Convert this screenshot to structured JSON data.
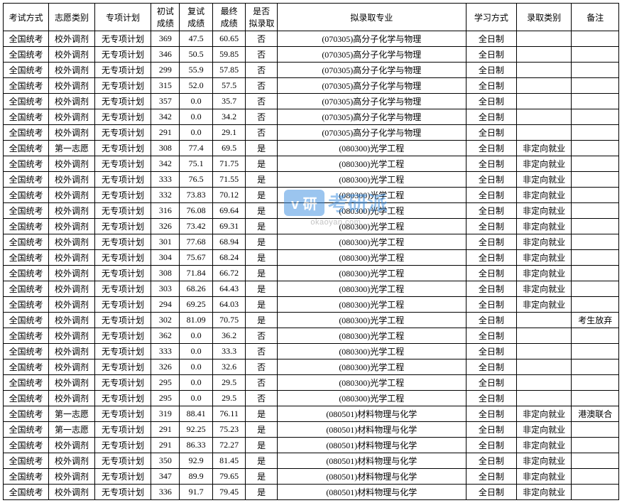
{
  "watermark": {
    "logo": "v 研",
    "text": "考研派",
    "sub": "okaoyan.com"
  },
  "table": {
    "columns": [
      "考试方式",
      "志愿类别",
      "专项计划",
      "初试\n成绩",
      "复试\n成绩",
      "最终\n成绩",
      "是否\n拟录取",
      "拟录取专业",
      "学习方式",
      "录取类别",
      "备注"
    ],
    "rows": [
      [
        "全国统考",
        "校外调剂",
        "无专项计划",
        "369",
        "47.5",
        "60.65",
        "否",
        "(070305)高分子化学与物理",
        "全日制",
        "",
        ""
      ],
      [
        "全国统考",
        "校外调剂",
        "无专项计划",
        "346",
        "50.5",
        "59.85",
        "否",
        "(070305)高分子化学与物理",
        "全日制",
        "",
        ""
      ],
      [
        "全国统考",
        "校外调剂",
        "无专项计划",
        "299",
        "55.9",
        "57.85",
        "否",
        "(070305)高分子化学与物理",
        "全日制",
        "",
        ""
      ],
      [
        "全国统考",
        "校外调剂",
        "无专项计划",
        "315",
        "52.0",
        "57.5",
        "否",
        "(070305)高分子化学与物理",
        "全日制",
        "",
        ""
      ],
      [
        "全国统考",
        "校外调剂",
        "无专项计划",
        "357",
        "0.0",
        "35.7",
        "否",
        "(070305)高分子化学与物理",
        "全日制",
        "",
        ""
      ],
      [
        "全国统考",
        "校外调剂",
        "无专项计划",
        "342",
        "0.0",
        "34.2",
        "否",
        "(070305)高分子化学与物理",
        "全日制",
        "",
        ""
      ],
      [
        "全国统考",
        "校外调剂",
        "无专项计划",
        "291",
        "0.0",
        "29.1",
        "否",
        "(070305)高分子化学与物理",
        "全日制",
        "",
        ""
      ],
      [
        "全国统考",
        "第一志愿",
        "无专项计划",
        "308",
        "77.4",
        "69.5",
        "是",
        "(080300)光学工程",
        "全日制",
        "非定向就业",
        ""
      ],
      [
        "全国统考",
        "校外调剂",
        "无专项计划",
        "342",
        "75.1",
        "71.75",
        "是",
        "(080300)光学工程",
        "全日制",
        "非定向就业",
        ""
      ],
      [
        "全国统考",
        "校外调剂",
        "无专项计划",
        "333",
        "76.5",
        "71.55",
        "是",
        "(080300)光学工程",
        "全日制",
        "非定向就业",
        ""
      ],
      [
        "全国统考",
        "校外调剂",
        "无专项计划",
        "332",
        "73.83",
        "70.12",
        "是",
        "(080300)光学工程",
        "全日制",
        "非定向就业",
        ""
      ],
      [
        "全国统考",
        "校外调剂",
        "无专项计划",
        "316",
        "76.08",
        "69.64",
        "是",
        "(080300)光学工程",
        "全日制",
        "非定向就业",
        ""
      ],
      [
        "全国统考",
        "校外调剂",
        "无专项计划",
        "326",
        "73.42",
        "69.31",
        "是",
        "(080300)光学工程",
        "全日制",
        "非定向就业",
        ""
      ],
      [
        "全国统考",
        "校外调剂",
        "无专项计划",
        "301",
        "77.68",
        "68.94",
        "是",
        "(080300)光学工程",
        "全日制",
        "非定向就业",
        ""
      ],
      [
        "全国统考",
        "校外调剂",
        "无专项计划",
        "304",
        "75.67",
        "68.24",
        "是",
        "(080300)光学工程",
        "全日制",
        "非定向就业",
        ""
      ],
      [
        "全国统考",
        "校外调剂",
        "无专项计划",
        "308",
        "71.84",
        "66.72",
        "是",
        "(080300)光学工程",
        "全日制",
        "非定向就业",
        ""
      ],
      [
        "全国统考",
        "校外调剂",
        "无专项计划",
        "303",
        "68.26",
        "64.43",
        "是",
        "(080300)光学工程",
        "全日制",
        "非定向就业",
        ""
      ],
      [
        "全国统考",
        "校外调剂",
        "无专项计划",
        "294",
        "69.25",
        "64.03",
        "是",
        "(080300)光学工程",
        "全日制",
        "非定向就业",
        ""
      ],
      [
        "全国统考",
        "校外调剂",
        "无专项计划",
        "302",
        "81.09",
        "70.75",
        "是",
        "(080300)光学工程",
        "全日制",
        "",
        "考生放弃"
      ],
      [
        "全国统考",
        "校外调剂",
        "无专项计划",
        "362",
        "0.0",
        "36.2",
        "否",
        "(080300)光学工程",
        "全日制",
        "",
        ""
      ],
      [
        "全国统考",
        "校外调剂",
        "无专项计划",
        "333",
        "0.0",
        "33.3",
        "否",
        "(080300)光学工程",
        "全日制",
        "",
        ""
      ],
      [
        "全国统考",
        "校外调剂",
        "无专项计划",
        "326",
        "0.0",
        "32.6",
        "否",
        "(080300)光学工程",
        "全日制",
        "",
        ""
      ],
      [
        "全国统考",
        "校外调剂",
        "无专项计划",
        "295",
        "0.0",
        "29.5",
        "否",
        "(080300)光学工程",
        "全日制",
        "",
        ""
      ],
      [
        "全国统考",
        "校外调剂",
        "无专项计划",
        "295",
        "0.0",
        "29.5",
        "否",
        "(080300)光学工程",
        "全日制",
        "",
        ""
      ],
      [
        "全国统考",
        "第一志愿",
        "无专项计划",
        "319",
        "88.41",
        "76.11",
        "是",
        "(080501)材料物理与化学",
        "全日制",
        "非定向就业",
        "港澳联合"
      ],
      [
        "全国统考",
        "第一志愿",
        "无专项计划",
        "291",
        "92.25",
        "75.23",
        "是",
        "(080501)材料物理与化学",
        "全日制",
        "非定向就业",
        ""
      ],
      [
        "全国统考",
        "校外调剂",
        "无专项计划",
        "291",
        "86.33",
        "72.27",
        "是",
        "(080501)材料物理与化学",
        "全日制",
        "非定向就业",
        ""
      ],
      [
        "全国统考",
        "校外调剂",
        "无专项计划",
        "350",
        "92.9",
        "81.45",
        "是",
        "(080501)材料物理与化学",
        "全日制",
        "非定向就业",
        ""
      ],
      [
        "全国统考",
        "校外调剂",
        "无专项计划",
        "347",
        "89.9",
        "79.65",
        "是",
        "(080501)材料物理与化学",
        "全日制",
        "非定向就业",
        ""
      ],
      [
        "全国统考",
        "校外调剂",
        "无专项计划",
        "336",
        "91.7",
        "79.45",
        "是",
        "(080501)材料物理与化学",
        "全日制",
        "非定向就业",
        ""
      ]
    ],
    "col_classes": [
      "col-exam",
      "col-choice",
      "col-plan",
      "col-s1",
      "col-s2",
      "col-s3",
      "col-admit",
      "col-major",
      "col-study",
      "col-cat",
      "col-rem"
    ]
  }
}
